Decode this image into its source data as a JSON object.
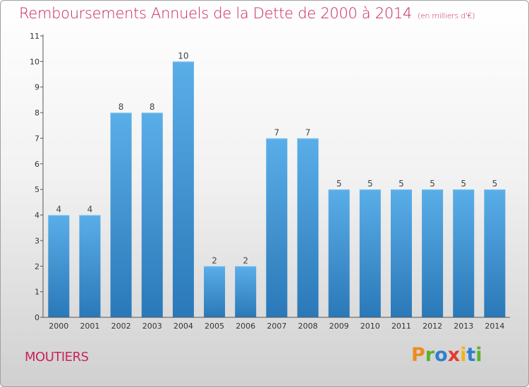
{
  "header": {
    "title": "Remboursements Annuels de la Dette de 2000 à 2014",
    "unit": "(en milliers d'€)"
  },
  "footer": {
    "commune": "MOUTIERS",
    "brand": "Proxiti"
  },
  "colors": {
    "title": "#c8245e",
    "bar_top": "#5aaee8",
    "bar_bottom": "#2a78b8",
    "brand_letters": [
      "#f08a1c",
      "#5bb030",
      "#2f7fd0",
      "#e23a2e",
      "#f2b318",
      "#2f7fd0",
      "#5bb030"
    ]
  },
  "chart_data": {
    "type": "bar",
    "categories": [
      "2000",
      "2001",
      "2002",
      "2003",
      "2004",
      "2005",
      "2006",
      "2007",
      "2008",
      "2009",
      "2010",
      "2011",
      "2012",
      "2013",
      "2014"
    ],
    "values": [
      4,
      4,
      8,
      8,
      10,
      2,
      2,
      7,
      7,
      5,
      5,
      5,
      5,
      5,
      5
    ],
    "title": "Remboursements Annuels de la Dette de 2000 à 2014",
    "ylim": [
      0,
      11
    ],
    "yticks": [
      0,
      1,
      2,
      3,
      4,
      5,
      6,
      7,
      8,
      9,
      10,
      11
    ],
    "grid": false,
    "data_labels": true
  }
}
